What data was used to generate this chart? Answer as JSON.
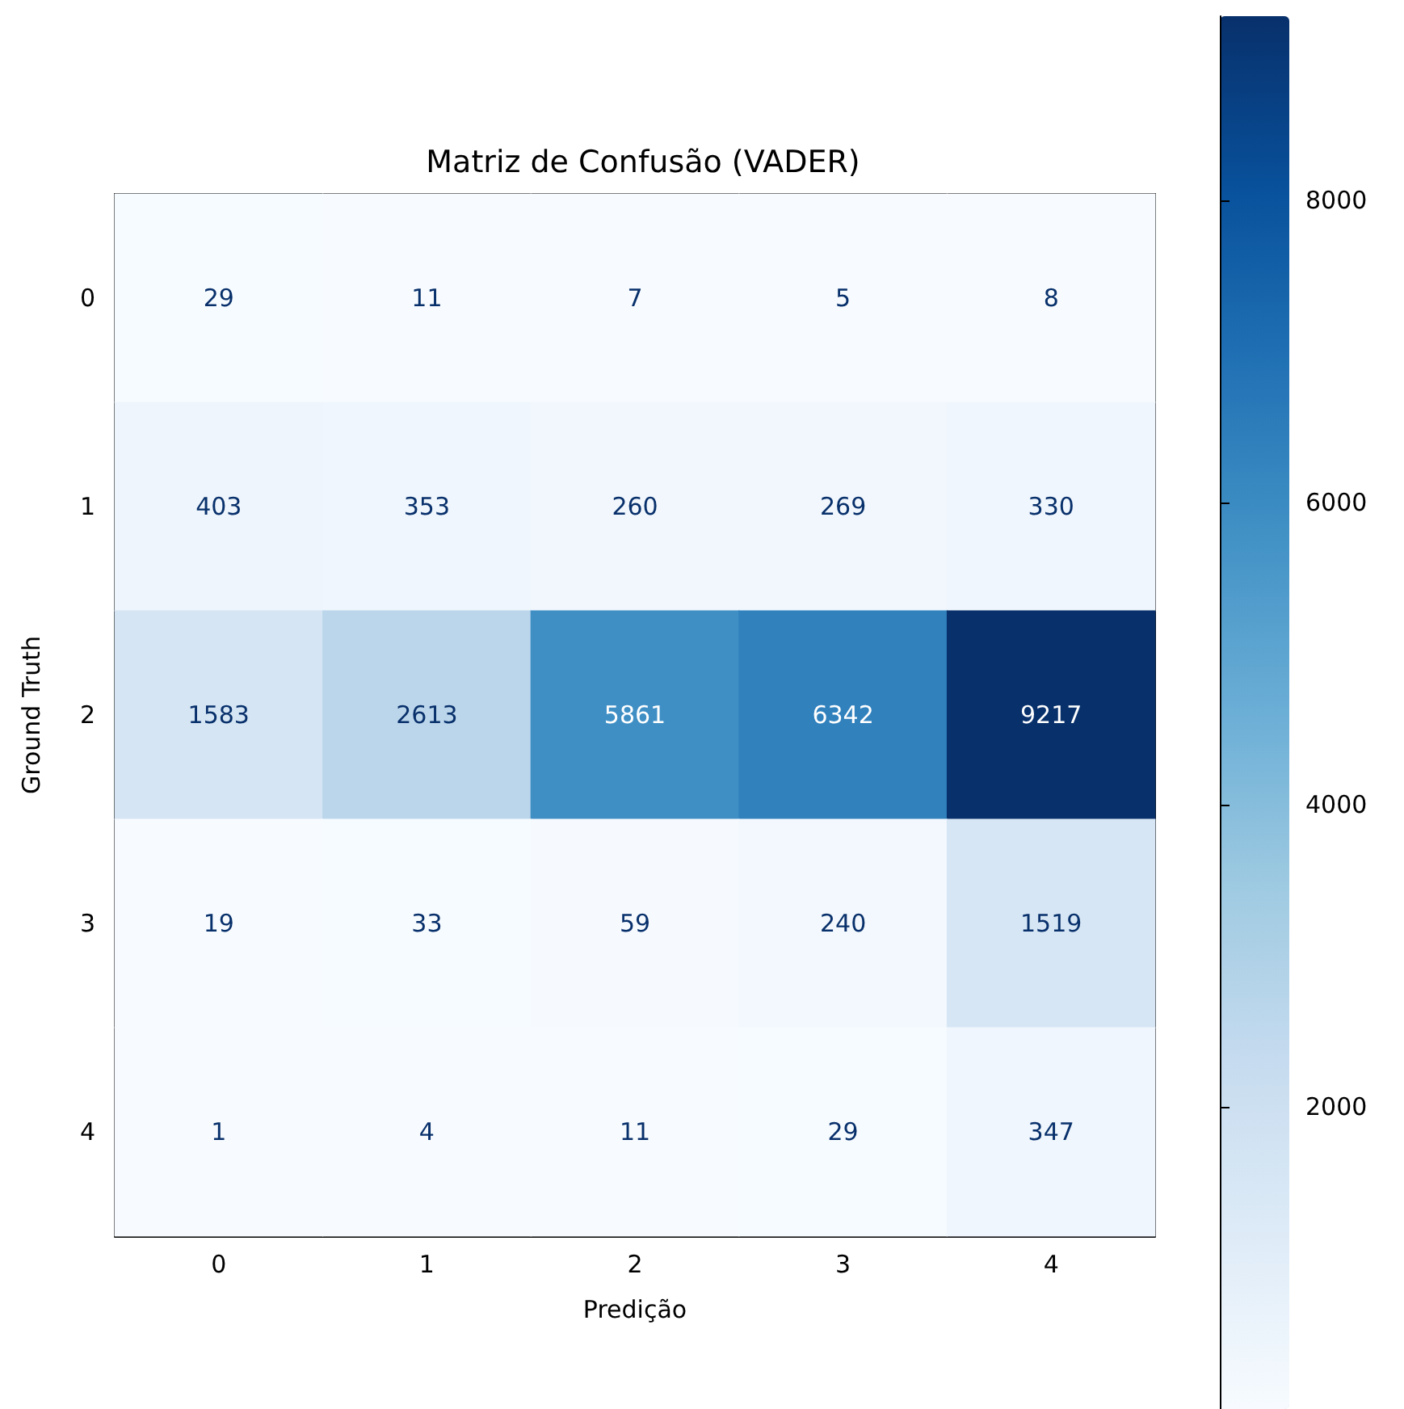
{
  "chart_data": {
    "type": "heatmap",
    "title": "Matriz de Confusão (VADER)",
    "xlabel": "Predição",
    "ylabel": "Ground Truth",
    "categories": [
      "0",
      "1",
      "2",
      "3",
      "4"
    ],
    "y_categories": [
      "0",
      "1",
      "2",
      "3",
      "4"
    ],
    "cells": [
      [
        29,
        11,
        7,
        5,
        8
      ],
      [
        403,
        353,
        260,
        269,
        330
      ],
      [
        1583,
        2613,
        5861,
        6342,
        9217
      ],
      [
        19,
        33,
        59,
        240,
        1519
      ],
      [
        1,
        4,
        11,
        29,
        347
      ]
    ],
    "data_labels": true,
    "clim": [
      1,
      9217
    ],
    "cticks": [
      2000,
      4000,
      6000,
      8000
    ]
  }
}
